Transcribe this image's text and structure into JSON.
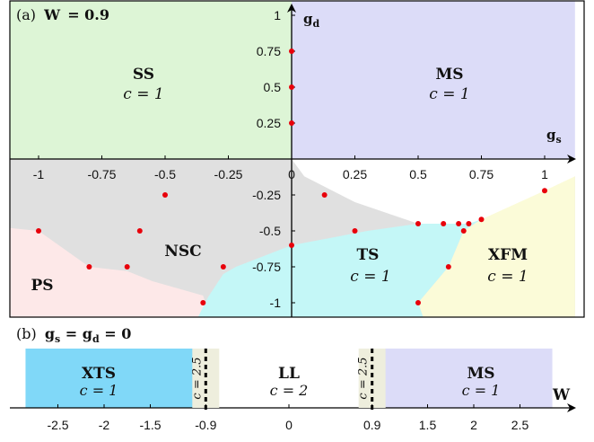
{
  "chart_data": [
    {
      "type": "phase-diagram",
      "panel_label": "(a)",
      "title_sym": "W",
      "title_val": "= 0.9",
      "xlabel_main": "g",
      "xlabel_sub": "s",
      "ylabel_main": "g",
      "ylabel_sub": "d",
      "xlim": [
        -1.12,
        1.12
      ],
      "ylim": [
        -1.1,
        1.1
      ],
      "x_ticks": [
        -1,
        -0.75,
        -0.5,
        -0.25,
        0,
        0.25,
        0.5,
        0.75,
        1
      ],
      "x_tick_labels": [
        "-1",
        "-0.75",
        "-0.5",
        "-0.25",
        "0",
        "0.25",
        "0.5",
        "0.75",
        "1"
      ],
      "y_ticks": [
        1,
        0.75,
        0.5,
        0.25,
        -0.25,
        -0.5,
        -0.75,
        -1
      ],
      "y_tick_labels": [
        "1",
        "0.75",
        "0.5",
        "0.25",
        "-0.25",
        "-0.5",
        "-0.75",
        "-1"
      ],
      "colors": {
        "SS": "#ddf5d6",
        "MS": "#dcdcf8",
        "NSC": "#e0e0e0",
        "PS": "#fde8e8",
        "TS": "#c4f7f7",
        "XFM": "#fbfbd8",
        "points": "#e8000b"
      },
      "regions": [
        {
          "name": "SS",
          "label": "SS",
          "c": "c = 1",
          "polygon": [
            [
              -1.12,
              0
            ],
            [
              0,
              0
            ],
            [
              0,
              1.1
            ],
            [
              -1.12,
              1.1
            ]
          ]
        },
        {
          "name": "MS",
          "label": "MS",
          "c": "c = 1",
          "polygon": [
            [
              0,
              0
            ],
            [
              1.12,
              0
            ],
            [
              1.12,
              1.1
            ],
            [
              0,
              1.1
            ]
          ]
        },
        {
          "name": "NSC",
          "label": "NSC",
          "c": "",
          "polygon": [
            [
              -1.12,
              0
            ],
            [
              0,
              0
            ],
            [
              0.05,
              -0.12
            ],
            [
              0.25,
              -0.3
            ],
            [
              0.5,
              -0.45
            ],
            [
              0.75,
              -0.45
            ],
            [
              1.0,
              -0.25
            ],
            [
              1.12,
              -0.12
            ],
            [
              1.12,
              -1.1
            ],
            [
              -1.12,
              -1.1
            ]
          ]
        },
        {
          "name": "PS",
          "label": "PS",
          "c": "",
          "polygon": [
            [
              -1.12,
              -0.48
            ],
            [
              -1.0,
              -0.5
            ],
            [
              -0.8,
              -0.75
            ],
            [
              -0.65,
              -0.78
            ],
            [
              -0.55,
              -0.85
            ],
            [
              -0.35,
              -0.95
            ],
            [
              -0.32,
              -1.1
            ],
            [
              -1.12,
              -1.1
            ]
          ]
        },
        {
          "name": "TS",
          "label": "TS",
          "c": "c = 1",
          "polygon": [
            [
              0,
              -0.6
            ],
            [
              0.3,
              -0.5
            ],
            [
              0.5,
              -0.45
            ],
            [
              0.6,
              -0.45
            ],
            [
              0.66,
              -0.45
            ],
            [
              0.7,
              -0.45
            ],
            [
              0.75,
              -0.42
            ],
            [
              0.68,
              -0.5
            ],
            [
              0.62,
              -0.75
            ],
            [
              0.5,
              -1.0
            ],
            [
              0.52,
              -1.1
            ],
            [
              -0.37,
              -1.1
            ],
            [
              -0.33,
              -0.96
            ],
            [
              -0.27,
              -0.8
            ],
            [
              -0.22,
              -0.75
            ]
          ]
        },
        {
          "name": "XFM",
          "label": "XFM",
          "c": "c = 1",
          "polygon": [
            [
              0.75,
              -0.42
            ],
            [
              1.0,
              -0.22
            ],
            [
              1.12,
              -0.12
            ],
            [
              1.12,
              -1.1
            ],
            [
              0.52,
              -1.1
            ],
            [
              0.5,
              -1.0
            ],
            [
              0.62,
              -0.75
            ],
            [
              0.68,
              -0.5
            ]
          ]
        }
      ],
      "points": [
        [
          0,
          0.75
        ],
        [
          0,
          0.5
        ],
        [
          0,
          0.25
        ],
        [
          -1.0,
          -0.5
        ],
        [
          -0.8,
          -0.75
        ],
        [
          -0.65,
          -0.75
        ],
        [
          -0.6,
          -0.5
        ],
        [
          -0.5,
          -0.25
        ],
        [
          -0.35,
          -1.0
        ],
        [
          -0.27,
          -0.75
        ],
        [
          0,
          -0.6
        ],
        [
          0.13,
          -0.25
        ],
        [
          0.25,
          -0.5
        ],
        [
          0.5,
          -0.45
        ],
        [
          0.6,
          -0.45
        ],
        [
          0.66,
          -0.45
        ],
        [
          0.7,
          -0.45
        ],
        [
          0.75,
          -0.42
        ],
        [
          0.68,
          -0.5
        ],
        [
          0.62,
          -0.75
        ],
        [
          0.5,
          -1.0
        ],
        [
          1.0,
          -0.22
        ]
      ]
    },
    {
      "type": "phase-bar",
      "panel_label": "(b)",
      "title": "g",
      "title_sub1": "s",
      "title_eq": " = g",
      "title_sub2": "d",
      "title_rest": " = 0",
      "xlabel": "W",
      "xlim": [
        -2.85,
        2.85
      ],
      "x_ticks": [
        -2.5,
        -2,
        -1.5,
        -0.9,
        0,
        0.9,
        1.5,
        2,
        2.5
      ],
      "x_tick_labels": [
        "-2.5",
        "-2",
        "-1.5",
        "-0.9",
        "0",
        "0.9",
        "1.5",
        "2",
        "2.5"
      ],
      "critical_points": [
        -0.9,
        0.9
      ],
      "critical_label": "c = 2.5",
      "segments": [
        {
          "name": "XTS",
          "label": "XTS",
          "c": "c = 1",
          "range": [
            -2.85,
            -0.9
          ],
          "color": "#80d8f8"
        },
        {
          "name": "LL",
          "label": "LL",
          "c": "c = 2",
          "range": [
            -0.9,
            0.9
          ],
          "color": "#ffffff"
        },
        {
          "name": "MS",
          "label": "MS",
          "c": "c = 1",
          "range": [
            0.9,
            2.85
          ],
          "color": "#dcdcf8"
        }
      ]
    }
  ]
}
